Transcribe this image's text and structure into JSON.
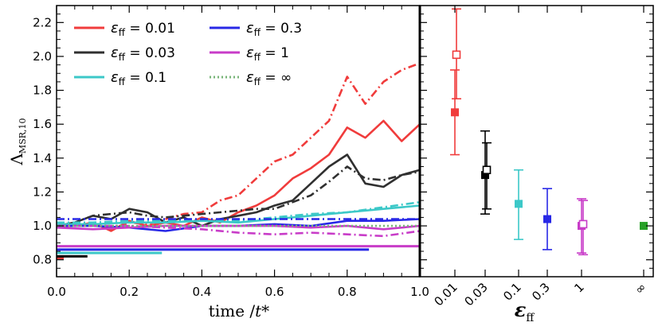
{
  "chart_data": [
    {
      "type": "line",
      "panel": "left",
      "xlabel": "time /t*",
      "ylabel": "Λ_MSR,10",
      "xlim": [
        0.0,
        1.0
      ],
      "ylim": [
        0.7,
        2.3
      ],
      "xticks": [
        0.0,
        0.2,
        0.4,
        0.6,
        0.8,
        1.0
      ],
      "xtick_labels": [
        "0.0",
        "0.2",
        "0.4",
        "0.6",
        "0.8",
        "1.0"
      ],
      "yticks": [
        0.8,
        1.0,
        1.2,
        1.4,
        1.6,
        1.8,
        2.0,
        2.2
      ],
      "ytick_labels": [
        "0.8",
        "1.0",
        "1.2",
        "1.4",
        "1.6",
        "1.8",
        "2.0",
        "2.2"
      ],
      "legend": [
        {
          "label": "εff = 0.01",
          "color": "#f03c3c",
          "style": "solid"
        },
        {
          "label": "εff = 0.03",
          "color": "#303030",
          "style": "solid"
        },
        {
          "label": "εff = 0.1",
          "color": "#3cc8c8",
          "style": "solid"
        },
        {
          "label": "εff = 0.3",
          "color": "#2828e6",
          "style": "solid"
        },
        {
          "label": "εff = 1",
          "color": "#c83cc8",
          "style": "solid"
        },
        {
          "label": "εff = ∞",
          "color": "#78b478",
          "style": "dotted"
        }
      ],
      "legend_columns": [
        {
          "symbol": "εff",
          "values": [
            "0.01",
            "0.03",
            "0.1"
          ]
        },
        {
          "symbol": "εff",
          "values": [
            "0.3",
            "1",
            "∞"
          ]
        }
      ],
      "series": [
        {
          "name": "εff = 0.01",
          "color": "#f03c3c",
          "style": "solid",
          "x": [
            0.0,
            0.05,
            0.1,
            0.15,
            0.2,
            0.25,
            0.3,
            0.35,
            0.4,
            0.45,
            0.5,
            0.55,
            0.6,
            0.65,
            0.7,
            0.75,
            0.8,
            0.85,
            0.9,
            0.95,
            1.0
          ],
          "y": [
            1.0,
            1.0,
            1.02,
            0.97,
            1.03,
            1.0,
            1.02,
            1.0,
            1.05,
            1.02,
            1.08,
            1.12,
            1.18,
            1.28,
            1.34,
            1.42,
            1.58,
            1.52,
            1.62,
            1.5,
            1.6
          ]
        },
        {
          "name": "εff = 0.01 (dash-dot)",
          "color": "#f03c3c",
          "style": "dashdot",
          "x": [
            0.0,
            0.05,
            0.1,
            0.15,
            0.2,
            0.25,
            0.3,
            0.35,
            0.4,
            0.45,
            0.5,
            0.55,
            0.6,
            0.65,
            0.7,
            0.75,
            0.8,
            0.85,
            0.9,
            0.95,
            1.0
          ],
          "y": [
            1.0,
            1.0,
            1.01,
            0.98,
            1.02,
            1.01,
            1.04,
            1.07,
            1.08,
            1.15,
            1.18,
            1.28,
            1.38,
            1.42,
            1.52,
            1.62,
            1.88,
            1.72,
            1.85,
            1.92,
            1.96
          ]
        },
        {
          "name": "εff = 0.03",
          "color": "#303030",
          "style": "solid",
          "x": [
            0.0,
            0.05,
            0.1,
            0.15,
            0.2,
            0.25,
            0.3,
            0.35,
            0.4,
            0.45,
            0.5,
            0.55,
            0.6,
            0.65,
            0.7,
            0.75,
            0.8,
            0.85,
            0.9,
            0.95,
            1.0
          ],
          "y": [
            1.0,
            1.02,
            1.06,
            1.04,
            1.1,
            1.08,
            1.02,
            1.05,
            1.0,
            1.04,
            1.06,
            1.08,
            1.12,
            1.15,
            1.25,
            1.35,
            1.42,
            1.25,
            1.23,
            1.3,
            1.33
          ]
        },
        {
          "name": "εff = 0.03 (dash-dot)",
          "color": "#303030",
          "style": "dashdot",
          "x": [
            0.0,
            0.05,
            0.1,
            0.15,
            0.2,
            0.25,
            0.3,
            0.35,
            0.4,
            0.45,
            0.5,
            0.55,
            0.6,
            0.65,
            0.7,
            0.75,
            0.8,
            0.85,
            0.9,
            0.95,
            1.0
          ],
          "y": [
            1.0,
            1.02,
            1.06,
            1.07,
            1.08,
            1.06,
            1.05,
            1.06,
            1.07,
            1.08,
            1.09,
            1.1,
            1.1,
            1.14,
            1.18,
            1.26,
            1.35,
            1.28,
            1.27,
            1.3,
            1.32
          ]
        },
        {
          "name": "εff = 0.1",
          "color": "#3cc8c8",
          "style": "solid",
          "x": [
            0.0,
            0.1,
            0.2,
            0.3,
            0.4,
            0.5,
            0.6,
            0.7,
            0.8,
            0.9,
            1.0
          ],
          "y": [
            1.01,
            1.01,
            1.02,
            1.02,
            1.03,
            1.02,
            1.04,
            1.06,
            1.08,
            1.1,
            1.12
          ]
        },
        {
          "name": "εff = 0.1 (dash-dot)",
          "color": "#3cc8c8",
          "style": "dashdot",
          "x": [
            0.0,
            0.1,
            0.2,
            0.3,
            0.4,
            0.5,
            0.6,
            0.7,
            0.8,
            0.9,
            1.0
          ],
          "y": [
            1.02,
            1.02,
            1.03,
            1.03,
            1.04,
            1.03,
            1.05,
            1.07,
            1.08,
            1.11,
            1.14
          ]
        },
        {
          "name": "εff = 0.3",
          "color": "#2828e6",
          "style": "solid",
          "x": [
            0.0,
            0.1,
            0.2,
            0.3,
            0.4,
            0.5,
            0.6,
            0.7,
            0.8,
            0.9,
            1.0
          ],
          "y": [
            1.0,
            1.0,
            0.99,
            0.97,
            1.0,
            1.0,
            1.01,
            1.0,
            1.03,
            1.03,
            1.04
          ]
        },
        {
          "name": "εff = 0.3 (dash-dot)",
          "color": "#2828e6",
          "style": "dashdot",
          "x": [
            0.0,
            0.1,
            0.2,
            0.3,
            0.4,
            0.5,
            0.6,
            0.7,
            0.8,
            0.9,
            1.0
          ],
          "y": [
            1.04,
            1.04,
            1.04,
            1.04,
            1.04,
            1.04,
            1.04,
            1.04,
            1.04,
            1.04,
            1.04
          ]
        },
        {
          "name": "εff = 1",
          "color": "#c83cc8",
          "style": "solid",
          "x": [
            0.0,
            0.1,
            0.2,
            0.3,
            0.4,
            0.5,
            0.6,
            0.7,
            0.8,
            0.9,
            1.0
          ],
          "y": [
            0.99,
            0.98,
            0.99,
            1.0,
            1.0,
            1.0,
            1.0,
            0.99,
            1.0,
            0.98,
            1.0
          ]
        },
        {
          "name": "εff = 1 (dash-dot)",
          "color": "#c83cc8",
          "style": "dashdot",
          "x": [
            0.0,
            0.1,
            0.2,
            0.3,
            0.4,
            0.5,
            0.6,
            0.7,
            0.8,
            0.9,
            1.0
          ],
          "y": [
            1.0,
            1.0,
            1.0,
            0.99,
            0.98,
            0.96,
            0.95,
            0.96,
            0.95,
            0.94,
            0.97
          ]
        },
        {
          "name": "εff = ∞",
          "color": "#78b478",
          "style": "dotted",
          "x": [
            0.0,
            0.2,
            0.4,
            0.6,
            0.8,
            1.0
          ],
          "y": [
            1.0,
            1.0,
            1.0,
            1.0,
            1.0,
            1.0
          ]
        }
      ],
      "extent_bars": [
        {
          "name": "εff = 0.01",
          "color": "#f03c3c",
          "y": 0.81,
          "x_end": 0.02
        },
        {
          "name": "εff = 0.03",
          "color": "#000000",
          "y": 0.82,
          "x_end": 0.085
        },
        {
          "name": "εff = 0.1",
          "color": "#3cc8c8",
          "y": 0.84,
          "x_end": 0.29
        },
        {
          "name": "εff = 0.3",
          "color": "#2828e6",
          "y": 0.86,
          "x_end": 0.86
        },
        {
          "name": "εff = 1",
          "color": "#c83cc8",
          "y": 0.88,
          "x_end": 1.0
        }
      ]
    },
    {
      "type": "scatter",
      "panel": "right",
      "xlabel": "εff",
      "ylim": [
        0.7,
        2.3
      ],
      "categories": [
        "0.01",
        "0.03",
        "0.1",
        "0.3",
        "1",
        "∞"
      ],
      "points": [
        {
          "category": "0.01",
          "color": "#f03c3c",
          "filled": 1.67,
          "filled_err": [
            1.42,
            1.92
          ],
          "open": 2.01,
          "open_err": [
            1.75,
            2.28
          ]
        },
        {
          "category": "0.03",
          "color": "#000000",
          "filled": 1.3,
          "filled_err": [
            1.07,
            1.56
          ],
          "open": 1.33,
          "open_err": [
            1.1,
            1.49
          ]
        },
        {
          "category": "0.1",
          "color": "#3cc8c8",
          "filled": 1.13,
          "filled_err": [
            0.92,
            1.33
          ]
        },
        {
          "category": "0.3",
          "color": "#2828e6",
          "filled": 1.04,
          "filled_err": [
            0.86,
            1.22
          ]
        },
        {
          "category": "1",
          "color": "#c83cc8",
          "filled": 1.0,
          "filled_err": [
            0.84,
            1.16
          ],
          "open": 1.01,
          "open_err": [
            0.83,
            1.15
          ]
        },
        {
          "category": "∞",
          "color": "#28a028",
          "filled": 1.0,
          "filled_err": [
            1.0,
            1.0
          ]
        }
      ]
    }
  ]
}
